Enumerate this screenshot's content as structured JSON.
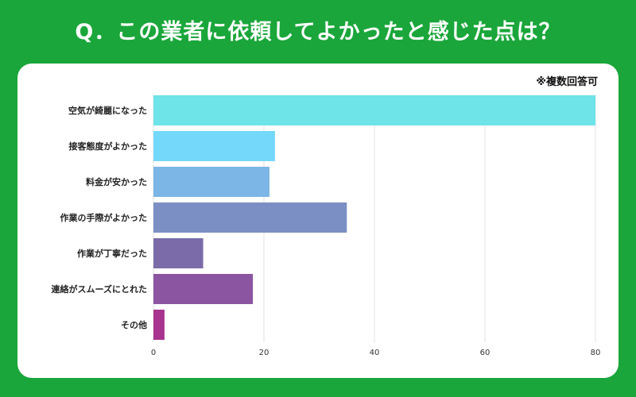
{
  "title": "Q．この業者に依頼してよかったと感じた点は？",
  "note": "※複数回答可",
  "chart_data": {
    "type": "bar",
    "orientation": "horizontal",
    "title": "Q．この業者に依頼してよかったと感じた点は？",
    "categories": [
      "空気が綺麗になった",
      "接客態度がよかった",
      "料金が安かった",
      "作業の手際がよかった",
      "作業が丁寧だった",
      "連絡がスムーズにとれた",
      "その他"
    ],
    "values": [
      80,
      22,
      21,
      35,
      9,
      18,
      2
    ],
    "colors": [
      "#6ee3e8",
      "#74d8fb",
      "#7cb6e6",
      "#7b8fc4",
      "#7b6ba8",
      "#8b55a1",
      "#a8348f"
    ],
    "xlim": [
      0,
      80
    ],
    "xticks": [
      0,
      20,
      40,
      60,
      80
    ],
    "xlabel": "",
    "ylabel": "",
    "grid": true
  }
}
